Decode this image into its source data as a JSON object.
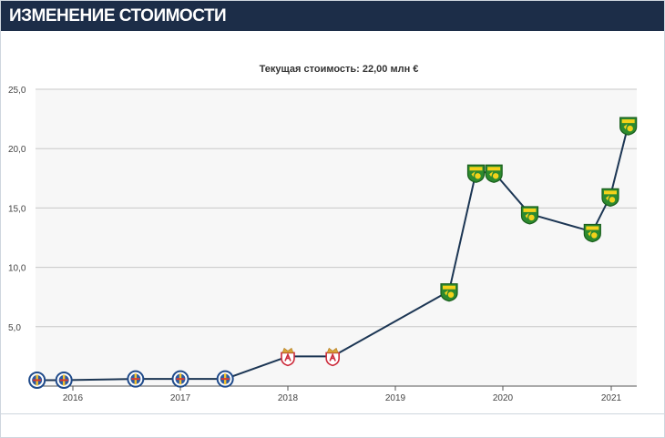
{
  "section": {
    "title": "ИЗМЕНЕНИЕ СТОИМОСТИ"
  },
  "chart_data": {
    "type": "line",
    "title": "Текущая стоимость: 22,00 млн €",
    "xlabel": "",
    "ylabel": "",
    "ylim": [
      0,
      25
    ],
    "yticks": [
      {
        "value": 5,
        "label": "5,0"
      },
      {
        "value": 10,
        "label": "10,0"
      },
      {
        "value": 15,
        "label": "15,0"
      },
      {
        "value": 20,
        "label": "20,0"
      },
      {
        "value": 25,
        "label": "25,0"
      }
    ],
    "xticks": [
      "2016",
      "2017",
      "2018",
      "2019",
      "2020",
      "2021"
    ],
    "grid": "horizontal",
    "line_color": "#1c3654",
    "points": [
      {
        "x": "2015-09",
        "y": 0.5,
        "club": "getafe-crest-icon"
      },
      {
        "x": "2015-12",
        "y": 0.5,
        "club": "getafe-crest-icon"
      },
      {
        "x": "2016-08",
        "y": 0.6,
        "club": "getafe-crest-icon"
      },
      {
        "x": "2017-01",
        "y": 0.6,
        "club": "getafe-crest-icon"
      },
      {
        "x": "2017-06",
        "y": 0.6,
        "club": "getafe-crest-icon"
      },
      {
        "x": "2018-01",
        "y": 2.5,
        "club": "sevilla-atletico-crest-icon"
      },
      {
        "x": "2018-06",
        "y": 2.5,
        "club": "sevilla-atletico-crest-icon"
      },
      {
        "x": "2019-07",
        "y": 8.0,
        "club": "norwich-crest-icon"
      },
      {
        "x": "2019-10",
        "y": 18.0,
        "club": "norwich-crest-icon"
      },
      {
        "x": "2019-12",
        "y": 18.0,
        "club": "norwich-crest-icon"
      },
      {
        "x": "2020-04",
        "y": 14.5,
        "club": "norwich-crest-icon"
      },
      {
        "x": "2020-11",
        "y": 13.0,
        "club": "norwich-crest-icon"
      },
      {
        "x": "2021-01",
        "y": 16.0,
        "club": "norwich-crest-icon"
      },
      {
        "x": "2021-03",
        "y": 22.0,
        "club": "norwich-crest-icon"
      }
    ]
  }
}
